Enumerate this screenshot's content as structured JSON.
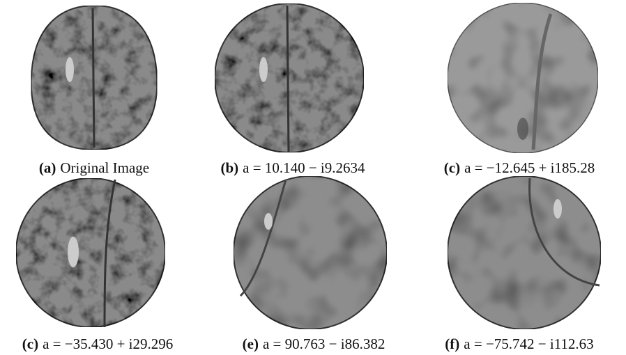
{
  "figure": {
    "panels": [
      {
        "tag": "(a)",
        "caption": "Original Image"
      },
      {
        "tag": "(b)",
        "caption": "a = 10.140 − i9.2634"
      },
      {
        "tag": "(c)",
        "caption": "a = −12.645 + i185.28"
      },
      {
        "tag": "(c)",
        "caption": "a = −35.430 + i29.296"
      },
      {
        "tag": "(e)",
        "caption": "a = 90.763 − i86.382"
      },
      {
        "tag": "(f)",
        "caption": "a = −75.742 − i112.63"
      }
    ]
  }
}
